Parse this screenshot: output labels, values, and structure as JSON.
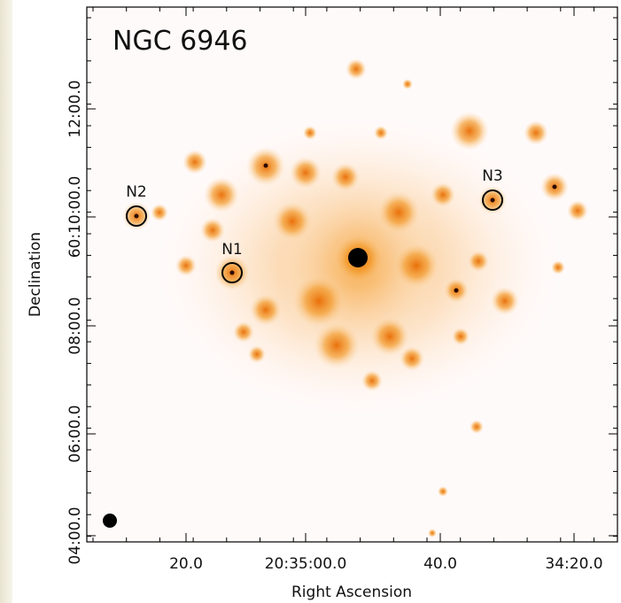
{
  "figure": {
    "title": "NGC 6946",
    "x_axis": {
      "label": "Right Ascension",
      "ticks": [
        "20.0",
        "20:35:00.0",
        "40.0",
        "34:20.0"
      ]
    },
    "y_axis": {
      "label": "Declination",
      "ticks": [
        "04:00.0",
        "06:00.0",
        "08:00.0",
        "60:10:00.0",
        "12:00.0"
      ]
    },
    "sources": [
      {
        "label": "N1"
      },
      {
        "label": "N2"
      },
      {
        "label": "N3"
      }
    ]
  }
}
